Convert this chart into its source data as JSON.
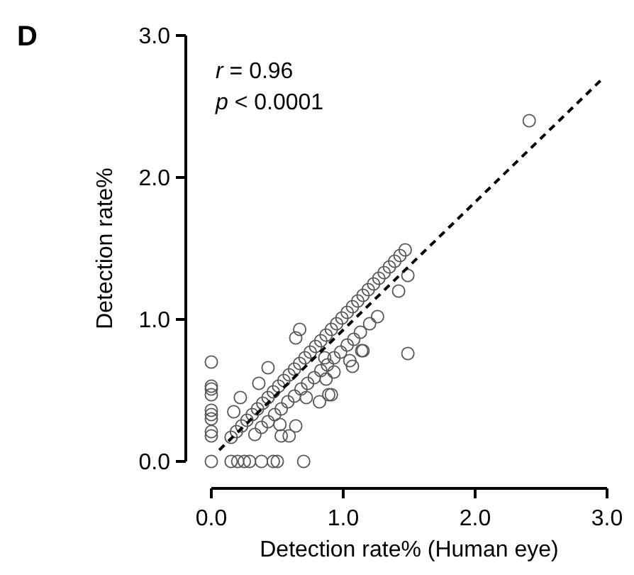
{
  "chart_data": {
    "type": "scatter",
    "xlabel": "Detection rate% (Human eye)",
    "ylabel": "Detection rate%",
    "annotations": [
      "D",
      "r = 0.96",
      "p < 0.0001"
    ],
    "xlim": [
      0,
      3
    ],
    "ylim": [
      0,
      3
    ],
    "xticks": [
      {
        "value": 0,
        "label": "0.0"
      },
      {
        "value": 1,
        "label": "1.0"
      },
      {
        "value": 2,
        "label": "2.0"
      },
      {
        "value": 3,
        "label": "3.0"
      }
    ],
    "yticks": [
      {
        "value": 0,
        "label": "0.0"
      },
      {
        "value": 1,
        "label": "1.0"
      },
      {
        "value": 2,
        "label": "2.0"
      },
      {
        "value": 3,
        "label": "3.0"
      }
    ],
    "grid": false,
    "marker": "circle",
    "series": [
      {
        "color": "#555555",
        "x": [
          0,
          0,
          0,
          0,
          0,
          0,
          0,
          0,
          0,
          0,
          0.15,
          0.2,
          0.25,
          0.29,
          0.38,
          0.47,
          0.5,
          0.7,
          0.15,
          0.19,
          0.23,
          0.27,
          0.31,
          0.35,
          0.39,
          0.43,
          0.47,
          0.51,
          0.55,
          0.59,
          0.63,
          0.67,
          0.71,
          0.75,
          0.79,
          0.83,
          0.87,
          0.91,
          0.95,
          0.99,
          1.03,
          1.07,
          1.11,
          1.15,
          1.19,
          1.23,
          1.27,
          1.31,
          1.35,
          1.39,
          1.43,
          1.47,
          0.33,
          0.38,
          0.43,
          0.48,
          0.53,
          0.58,
          0.63,
          0.68,
          0.73,
          0.78,
          0.83,
          0.88,
          0.93,
          0.98,
          1.03,
          1.08,
          1.13,
          1.2,
          0.67,
          0.64,
          0.43,
          0.36,
          0.22,
          0.17,
          1.42,
          1.49,
          1.49,
          1.26,
          1.15,
          1.07,
          1.05,
          0.91,
          0.87,
          1.14,
          0.86,
          0.89,
          0.82,
          0.64,
          0.59,
          0.52,
          0.53,
          0.72,
          0.93,
          2.41
        ],
        "values": [
          0.7,
          0.53,
          0.51,
          0.47,
          0.36,
          0.33,
          0.3,
          0.21,
          0.18,
          0,
          0,
          0,
          0,
          0,
          0,
          0,
          0,
          0,
          0.17,
          0.21,
          0.25,
          0.29,
          0.33,
          0.37,
          0.41,
          0.45,
          0.49,
          0.53,
          0.57,
          0.61,
          0.65,
          0.69,
          0.73,
          0.77,
          0.81,
          0.85,
          0.89,
          0.93,
          0.97,
          1.01,
          1.05,
          1.09,
          1.13,
          1.17,
          1.21,
          1.25,
          1.29,
          1.33,
          1.37,
          1.41,
          1.45,
          1.49,
          0.19,
          0.24,
          0.28,
          0.33,
          0.37,
          0.42,
          0.46,
          0.51,
          0.55,
          0.59,
          0.64,
          0.68,
          0.73,
          0.77,
          0.82,
          0.86,
          0.91,
          0.97,
          0.93,
          0.87,
          0.66,
          0.55,
          0.45,
          0.35,
          1.2,
          0.76,
          1.31,
          1.02,
          0.78,
          0.67,
          0.71,
          0.47,
          0.58,
          0.78,
          0.73,
          0.47,
          0.42,
          0.25,
          0.18,
          0.26,
          0.18,
          0.45,
          0.63,
          2.4
        ]
      },
      {
        "type": "line",
        "color": "#000000",
        "line_style": "dashed",
        "marker": "none",
        "x": [
          0.06,
          2.97
        ],
        "values": [
          0.08,
          2.7
        ]
      }
    ]
  }
}
